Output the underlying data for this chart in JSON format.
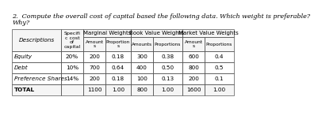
{
  "title_line1": "2.  Compute the overall cost of capital based the following data. Which weight is preferable?",
  "title_line2": "Why?",
  "rows": [
    [
      "Equity",
      "20%",
      "200",
      "0.18",
      "300",
      "0.38",
      "600",
      "0.4"
    ],
    [
      "Debt",
      "10%",
      "700",
      "0.64",
      "400",
      "0.50",
      "800",
      "0.5"
    ],
    [
      "Preference Shares",
      "14%",
      "200",
      "0.18",
      "100",
      "0.13",
      "200",
      "0.1"
    ],
    [
      "TOTAL",
      "",
      "1100",
      "1.00",
      "800",
      "1.00",
      "1600",
      "1.00"
    ]
  ],
  "bg_color": "#ffffff",
  "header_bg": "#f5f5f5",
  "border_color": "#555555",
  "title_fontsize": 5.8,
  "table_fontsize": 5.2,
  "header_fontsize": 5.2
}
